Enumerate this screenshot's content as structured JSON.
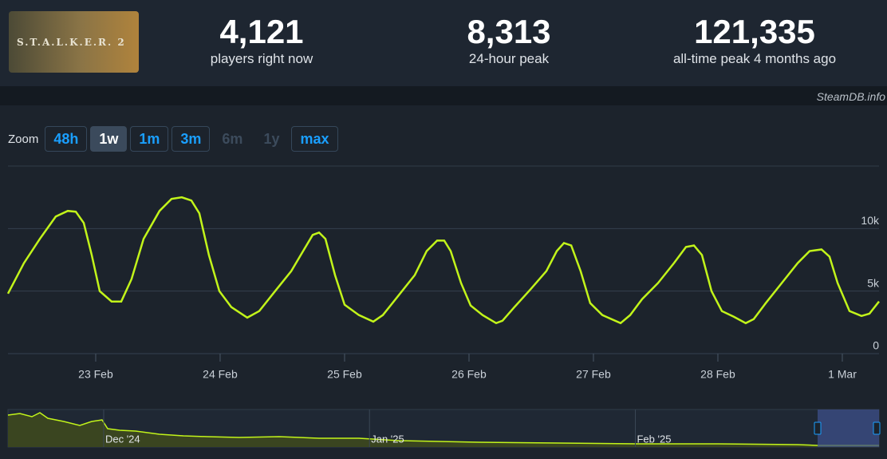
{
  "header": {
    "logo": "S.T.A.L.K.E.R. 2",
    "stats": [
      {
        "value": "4,121",
        "label": "players right now"
      },
      {
        "value": "8,313",
        "label": "24-hour peak"
      },
      {
        "value": "121,335",
        "label": "all-time peak 4 months ago"
      }
    ]
  },
  "watermark": "SteamDB.info",
  "zoom": {
    "label": "Zoom",
    "buttons": [
      {
        "label": "48h",
        "state": "normal"
      },
      {
        "label": "1w",
        "state": "active"
      },
      {
        "label": "1m",
        "state": "normal"
      },
      {
        "label": "3m",
        "state": "normal"
      },
      {
        "label": "6m",
        "state": "disabled"
      },
      {
        "label": "1y",
        "state": "disabled"
      },
      {
        "label": "max",
        "state": "normal"
      }
    ]
  },
  "chart_data": [
    {
      "type": "line",
      "color": "#c2f41a",
      "x": [
        -0.705,
        -0.577,
        -0.449,
        -0.321,
        -0.224,
        -0.16,
        -0.096,
        -0.032,
        0.032,
        0.128,
        0.205,
        0.288,
        0.385,
        0.513,
        0.609,
        0.692,
        0.769,
        0.833,
        0.91,
        0.994,
        1.09,
        1.218,
        1.314,
        1.442,
        1.571,
        1.667,
        1.744,
        1.795,
        1.846,
        1.923,
        2.0,
        2.115,
        2.231,
        2.308,
        2.436,
        2.564,
        2.66,
        2.744,
        2.801,
        2.853,
        2.936,
        3.013,
        3.109,
        3.218,
        3.269,
        3.365,
        3.494,
        3.622,
        3.705,
        3.763,
        3.821,
        3.897,
        3.974,
        4.071,
        4.218,
        4.295,
        4.391,
        4.519,
        4.647,
        4.744,
        4.808,
        4.872,
        4.949,
        5.032,
        5.128,
        5.224,
        5.288,
        5.385,
        5.513,
        5.641,
        5.737,
        5.833,
        5.897,
        5.962,
        6.058,
        6.154,
        6.218,
        6.295
      ],
      "values": [
        4800,
        7240,
        9170,
        10960,
        11410,
        11350,
        10450,
        7880,
        5000,
        4170,
        4170,
        5960,
        9170,
        11410,
        12370,
        12500,
        12240,
        11220,
        7880,
        5000,
        3720,
        2880,
        3400,
        5000,
        6600,
        8200,
        9490,
        9680,
        9170,
        6280,
        3910,
        3080,
        2560,
        3080,
        4680,
        6280,
        8200,
        9040,
        9040,
        8200,
        5640,
        3850,
        3080,
        2440,
        2630,
        3720,
        5130,
        6600,
        8200,
        8850,
        8650,
        6600,
        4040,
        3080,
        2440,
        3080,
        4360,
        5640,
        7240,
        8530,
        8650,
        7880,
        5000,
        3400,
        2950,
        2440,
        2760,
        4040,
        5640,
        7240,
        8200,
        8330,
        7760,
        5640,
        3400,
        3010,
        3200,
        4170
      ],
      "xlim": [
        -0.705,
        6.295
      ],
      "xticks": [
        {
          "value": 0,
          "label": "23 Feb"
        },
        {
          "value": 1,
          "label": "24 Feb"
        },
        {
          "value": 2,
          "label": "25 Feb"
        },
        {
          "value": 3,
          "label": "26 Feb"
        },
        {
          "value": 4,
          "label": "27 Feb"
        },
        {
          "value": 5,
          "label": "28 Feb"
        },
        {
          "value": 6,
          "label": "1 Mar"
        }
      ],
      "ylim": [
        0,
        15000
      ],
      "yticks": [
        0,
        {
          "value": 5000,
          "label": "5k"
        },
        {
          "value": 10000,
          "label": "10k"
        }
      ],
      "grid": true
    },
    {
      "type": "area",
      "color": "#c2f41a",
      "fill": "#3a4520",
      "x": [
        -11.16,
        -9.77,
        -8.37,
        -7.44,
        -6.51,
        -4.65,
        -2.79,
        -1.4,
        -0.19,
        0.47,
        1.86,
        3.72,
        6.51,
        9.3,
        12.09,
        15.81,
        20.47,
        25.12,
        29.77,
        34.42,
        39.07,
        43.72,
        53.02,
        62.33,
        71.63,
        80.93,
        83.26,
        90.42
      ],
      "values": [
        110600,
        116200,
        105100,
        118900,
        99600,
        88500,
        74700,
        88500,
        94000,
        63600,
        58100,
        55300,
        44300,
        38700,
        36000,
        33200,
        36000,
        30400,
        30400,
        22100,
        19400,
        16600,
        13800,
        11100,
        11100,
        8300,
        5500,
        5500
      ],
      "xlim": [
        -11.16,
        90.42
      ],
      "xticks": [
        {
          "value": 0,
          "label": "Dec '24"
        },
        {
          "value": 31,
          "label": "Jan '25"
        },
        {
          "value": 62,
          "label": "Feb '25"
        }
      ],
      "ylim": [
        0,
        130000
      ]
    }
  ]
}
